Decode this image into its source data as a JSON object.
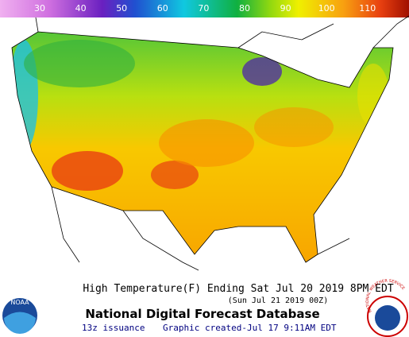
{
  "scale": {
    "labels": [
      30,
      40,
      50,
      60,
      70,
      80,
      90,
      100,
      110
    ]
  },
  "title": "High Temperature(F) Ending Sat Jul 20 2019  8PM EDT",
  "subtitle": "(Sun Jul 21 2019 00Z)",
  "database": "National Digital Forecast Database",
  "issuance": "13z issuance",
  "created": "Graphic created-Jul 17  9:11AM EDT",
  "logos": {
    "noaa": "NOAA",
    "nws": "NATIONAL WEATHER SERVICE"
  }
}
